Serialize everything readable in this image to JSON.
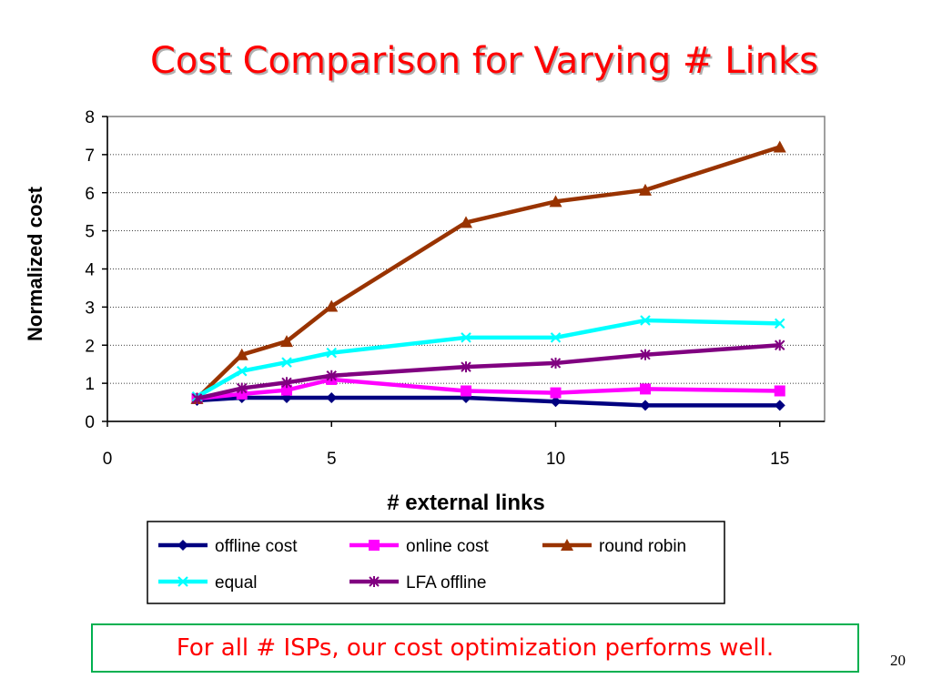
{
  "slide": {
    "title": "Cost Comparison for Varying # Links",
    "callout": "For all # ISPs, our cost optimization performs well.",
    "page_number": "20"
  },
  "colors": {
    "title": "#ff0000",
    "callout_text": "#ff0000",
    "callout_border": "#00b050"
  },
  "chart_data": {
    "type": "line",
    "title": "",
    "xlabel": "# external links",
    "ylabel": "Normalized cost",
    "xlim": [
      0,
      16
    ],
    "ylim": [
      0,
      8
    ],
    "xticks": [
      0,
      5,
      10,
      15
    ],
    "yticks": [
      0,
      1,
      2,
      3,
      4,
      5,
      6,
      7,
      8
    ],
    "grid": "horizontal dotted",
    "legend_position": "bottom",
    "x": [
      2,
      3,
      4,
      5,
      8,
      10,
      12,
      15
    ],
    "series": [
      {
        "name": "offline cost",
        "color": "#000080",
        "marker": "diamond",
        "values": [
          0.55,
          0.62,
          0.62,
          0.62,
          0.62,
          0.52,
          0.42,
          0.42
        ]
      },
      {
        "name": "online cost",
        "color": "#ff00ff",
        "marker": "square",
        "values": [
          0.6,
          0.72,
          0.82,
          1.1,
          0.8,
          0.75,
          0.85,
          0.8
        ]
      },
      {
        "name": "round robin",
        "color": "#993300",
        "marker": "triangle",
        "values": [
          0.6,
          1.75,
          2.1,
          3.02,
          5.22,
          5.77,
          6.07,
          7.2
        ]
      },
      {
        "name": "equal",
        "color": "#00ffff",
        "marker": "x",
        "values": [
          0.65,
          1.32,
          1.55,
          1.8,
          2.2,
          2.2,
          2.65,
          2.57
        ]
      },
      {
        "name": "LFA offline",
        "color": "#800080",
        "marker": "star",
        "values": [
          0.6,
          0.87,
          1.02,
          1.2,
          1.43,
          1.53,
          1.75,
          2.0
        ]
      }
    ]
  }
}
